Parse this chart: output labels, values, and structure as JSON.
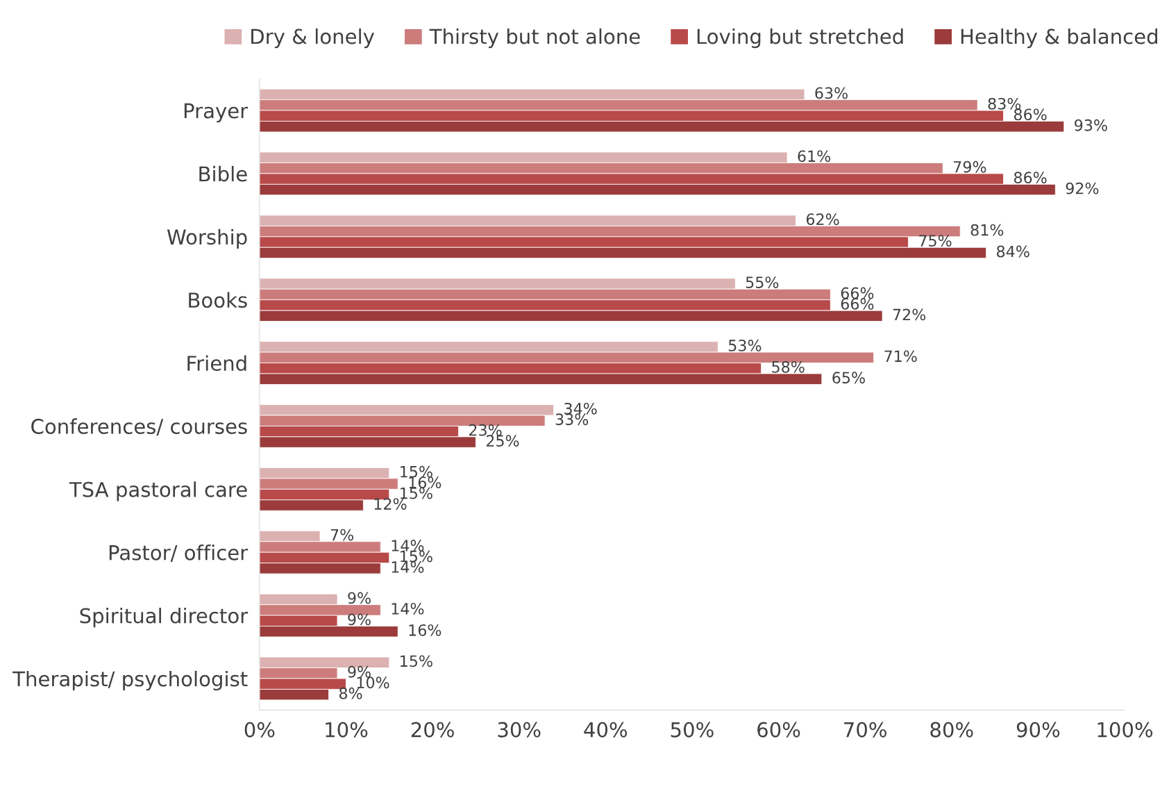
{
  "chart_data": {
    "type": "bar",
    "orientation": "horizontal",
    "categories": [
      "Prayer",
      "Bible",
      "Worship",
      "Books",
      "Friend",
      "Conferences/ courses",
      "TSA pastoral care",
      "Pastor/ officer",
      "Spiritual director",
      "Therapist/ psychologist"
    ],
    "series": [
      {
        "name": "Dry & lonely",
        "color": "#dcb1b1",
        "values": [
          63,
          61,
          62,
          55,
          53,
          34,
          15,
          7,
          9,
          15
        ],
        "value_labels": [
          "63%",
          "61%",
          "62%",
          "55%",
          "53%",
          "34%",
          "15%",
          "7%",
          "9%",
          "15%"
        ]
      },
      {
        "name": "Thirsty but not alone",
        "color": "#cd7c7c",
        "values": [
          83,
          79,
          81,
          66,
          71,
          33,
          16,
          14,
          14,
          9
        ],
        "value_labels": [
          "83%",
          "79%",
          "81%",
          "66%",
          "71%",
          "33%",
          "16%",
          "14%",
          "14%",
          "9%"
        ]
      },
      {
        "name": "Loving but stretched",
        "color": "#b94a4a",
        "values": [
          86,
          86,
          75,
          66,
          58,
          23,
          15,
          15,
          9,
          10
        ],
        "value_labels": [
          "86%",
          "86%",
          "75%",
          "66%",
          "58%",
          "23%",
          "15%",
          "15%",
          "9%",
          "10%"
        ]
      },
      {
        "name": "Healthy & balanced",
        "color": "#9b3b3b",
        "values": [
          93,
          92,
          84,
          72,
          65,
          25,
          12,
          14,
          16,
          8
        ],
        "value_labels": [
          "93%",
          "92%",
          "84%",
          "72%",
          "65%",
          "25%",
          "12%",
          "14%",
          "16%",
          "8%"
        ]
      }
    ],
    "xlim": [
      0,
      100
    ],
    "xticks": [
      {
        "value": 0,
        "label": "0%"
      },
      {
        "value": 10,
        "label": "10%"
      },
      {
        "value": 20,
        "label": "20%"
      },
      {
        "value": 30,
        "label": "30%"
      },
      {
        "value": 40,
        "label": "40%"
      },
      {
        "value": 50,
        "label": "50%"
      },
      {
        "value": 60,
        "label": "60%"
      },
      {
        "value": 70,
        "label": "70%"
      },
      {
        "value": 80,
        "label": "80%"
      },
      {
        "value": 90,
        "label": "90%"
      },
      {
        "value": 100,
        "label": "100%"
      }
    ],
    "grid": false,
    "legend": "top"
  }
}
